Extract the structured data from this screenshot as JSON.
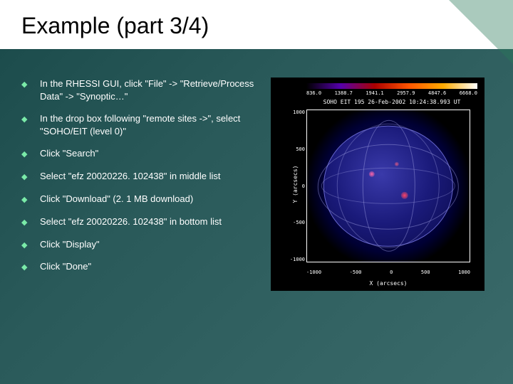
{
  "slide": {
    "title": "Example (part 3/4)",
    "bullets": [
      "In the RHESSI GUI, click \"File\" -> \"Retrieve/Process Data\" -> \"Synoptic…\"",
      "In the drop box following \"remote sites ->\", select \"SOHO/EIT (level 0)\"",
      "Click \"Search\"",
      "Select \"efz 20020226. 102438\" in middle list",
      "Click \"Download\" (2. 1 MB download)",
      "Select \"efz 20020226. 102438\" in bottom list",
      "Click \"Display\"",
      "Click \"Done\""
    ]
  },
  "figure": {
    "title": "SOHO EIT 195 26-Feb-2002 10:24:38.993 UT",
    "colorbar_ticks": [
      "836.0",
      "1388.7",
      "1941.1",
      "2957.9",
      "4847.6",
      "6668.0"
    ],
    "xlabel": "X (arcsecs)",
    "ylabel": "Y (arcsecs)",
    "yticks": [
      "1000",
      "500",
      "0",
      "-500",
      "-1000"
    ],
    "xticks": [
      "-1000",
      "-500",
      "0",
      "500",
      "1000"
    ],
    "colors": {
      "background": "#000000",
      "axis": "#ffffff",
      "grid": "#6666cc"
    }
  }
}
